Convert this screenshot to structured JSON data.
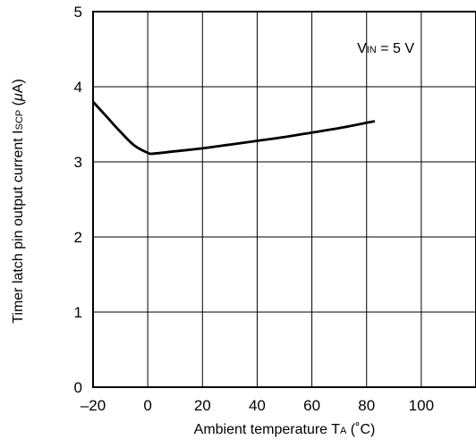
{
  "chart_data": {
    "type": "line",
    "xlabel": "Ambient temperature  T",
    "xlabel_sub": "A",
    "xlabel_unit": " (˚C)",
    "ylabel": "Timer latch pin output current  I",
    "ylabel_sub": "SCP",
    "ylabel_unit": " (",
    "ylabel_mu": "μ",
    "ylabel_unit_end": "A)",
    "xlim": [
      -20,
      120
    ],
    "ylim": [
      0,
      5
    ],
    "x_ticks": [
      -20,
      0,
      20,
      40,
      60,
      80,
      100
    ],
    "x_tick_labels": [
      "–20",
      "0",
      "20",
      "40",
      "60",
      "80",
      "100"
    ],
    "y_ticks": [
      0,
      1,
      2,
      3,
      4,
      5
    ],
    "y_tick_labels": [
      "0",
      "1",
      "2",
      "3",
      "4",
      "5"
    ],
    "grid": true,
    "annotation": {
      "prefix": "V",
      "sub": "IN",
      "suffix": " = 5 V",
      "position": "top-right"
    },
    "series": [
      {
        "x": [
          -20,
          -15,
          -10,
          -5,
          0,
          2,
          10,
          20,
          30,
          40,
          50,
          60,
          70,
          80,
          83
        ],
        "y": [
          3.8,
          3.6,
          3.4,
          3.22,
          3.12,
          3.11,
          3.14,
          3.18,
          3.23,
          3.28,
          3.33,
          3.39,
          3.45,
          3.52,
          3.54
        ]
      }
    ]
  }
}
